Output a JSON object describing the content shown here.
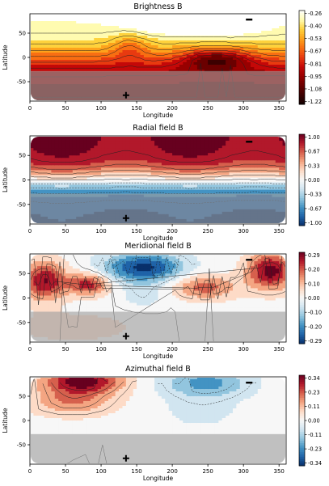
{
  "chart_data": [
    {
      "type": "heatmap",
      "title": "Brightness B",
      "xlabel": "Longitude",
      "ylabel": "Latitude",
      "xlim": [
        0,
        360
      ],
      "ylim": [
        -90,
        90
      ],
      "x_ticks": [
        "0",
        "50",
        "100",
        "150",
        "200",
        "250",
        "300",
        "350"
      ],
      "y_ticks": [
        "50",
        "0",
        "-50"
      ],
      "colorbar_ticks": [
        "-0.26",
        "-0.40",
        "-0.53",
        "-0.67",
        "-0.81",
        "-0.95",
        "-1.08",
        "-1.22"
      ],
      "colormap": "hot",
      "shaded_region_lat": [
        -90,
        -28
      ],
      "plus_marker": [
        135,
        -78
      ],
      "minus_marker": [
        308,
        78
      ]
    },
    {
      "type": "heatmap",
      "title": "Radial field B",
      "xlabel": "Longitude",
      "ylabel": "Latitude",
      "xlim": [
        0,
        360
      ],
      "ylim": [
        -90,
        90
      ],
      "x_ticks": [
        "0",
        "50",
        "100",
        "150",
        "200",
        "250",
        "300",
        "350"
      ],
      "y_ticks": [
        "50",
        "0",
        "-50"
      ],
      "colorbar_ticks": [
        "1.00",
        "0.67",
        "0.33",
        "0.00",
        "-0.33",
        "-0.67",
        "-1.00"
      ],
      "colormap": "RdBu_r",
      "shaded_region_lat": [
        -90,
        -28
      ],
      "plus_marker": [
        135,
        -78
      ],
      "minus_marker": [
        308,
        78
      ]
    },
    {
      "type": "heatmap",
      "title": "Meridional field B",
      "xlabel": "Longitude",
      "ylabel": "Latitude",
      "xlim": [
        0,
        360
      ],
      "ylim": [
        -90,
        90
      ],
      "x_ticks": [
        "0",
        "50",
        "100",
        "150",
        "200",
        "250",
        "300",
        "350"
      ],
      "y_ticks": [
        "50",
        "0",
        "-50"
      ],
      "colorbar_ticks": [
        "0.29",
        "0.20",
        "0.10",
        "0.00",
        "-0.10",
        "-0.20",
        "-0.29"
      ],
      "colormap": "RdBu_r",
      "shaded_region_lat": [
        -90,
        -28
      ],
      "plus_marker": [
        135,
        -78
      ],
      "minus_marker": [
        308,
        78
      ]
    },
    {
      "type": "heatmap",
      "title": "Azimuthal field B",
      "xlabel": "Longitude",
      "ylabel": "Latitude",
      "xlim": [
        0,
        360
      ],
      "ylim": [
        -90,
        90
      ],
      "x_ticks": [
        "0",
        "50",
        "100",
        "150",
        "200",
        "250",
        "300",
        "350"
      ],
      "y_ticks": [
        "50",
        "0",
        "-50"
      ],
      "colorbar_ticks": [
        "0.34",
        "0.23",
        "0.11",
        "0.00",
        "-0.11",
        "-0.23",
        "-0.34"
      ],
      "colormap": "RdBu_r",
      "shaded_region_lat": [
        -90,
        -28
      ],
      "plus_marker": [
        135,
        -78
      ],
      "minus_marker": [
        308,
        78
      ]
    }
  ]
}
